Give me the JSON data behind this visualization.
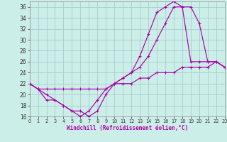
{
  "xlabel": "Windchill (Refroidissement éolien,°C)",
  "bg_color": "#cceee8",
  "grid_color": "#aacccc",
  "line_color": "#aa00aa",
  "xlim": [
    0,
    23
  ],
  "ylim": [
    16,
    37
  ],
  "xticks": [
    0,
    1,
    2,
    3,
    4,
    5,
    6,
    7,
    8,
    9,
    10,
    11,
    12,
    13,
    14,
    15,
    16,
    17,
    18,
    19,
    20,
    21,
    22,
    23
  ],
  "yticks": [
    16,
    18,
    20,
    22,
    24,
    26,
    28,
    30,
    32,
    34,
    36
  ],
  "curve1_x": [
    0,
    1,
    2,
    3,
    4,
    5,
    6,
    7,
    8,
    9,
    10,
    11,
    12,
    13,
    14,
    15,
    16,
    17,
    18,
    19,
    20,
    21,
    22,
    23
  ],
  "curve1_y": [
    22,
    21,
    19,
    19,
    18,
    17,
    17,
    16,
    17,
    20,
    22,
    23,
    24,
    27,
    31,
    35,
    36,
    37,
    36,
    26,
    26,
    26,
    26,
    25
  ],
  "curve2_x": [
    0,
    1,
    2,
    3,
    4,
    5,
    6,
    7,
    8,
    9,
    10,
    11,
    12,
    13,
    14,
    15,
    16,
    17,
    18,
    19,
    20,
    21,
    22,
    23
  ],
  "curve2_y": [
    22,
    21,
    20,
    19,
    18,
    17,
    16,
    17,
    19,
    21,
    22,
    23,
    24,
    25,
    27,
    30,
    33,
    36,
    36,
    36,
    33,
    26,
    26,
    25
  ],
  "curve3_x": [
    0,
    1,
    2,
    3,
    4,
    5,
    6,
    7,
    8,
    9,
    10,
    11,
    12,
    13,
    14,
    15,
    16,
    17,
    18,
    19,
    20,
    21,
    22,
    23
  ],
  "curve3_y": [
    22,
    21,
    21,
    21,
    21,
    21,
    21,
    21,
    21,
    21,
    22,
    22,
    22,
    23,
    23,
    24,
    24,
    24,
    25,
    25,
    25,
    25,
    26,
    25
  ]
}
